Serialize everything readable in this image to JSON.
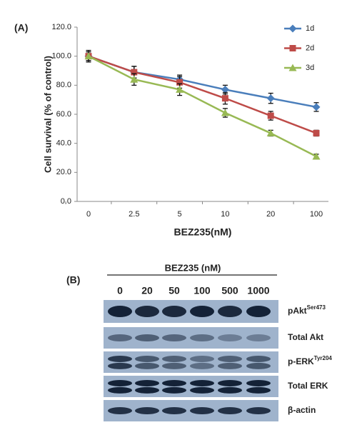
{
  "chart_data": {
    "type": "line",
    "panel_label": "(A)",
    "x_label": "BEZ235(nM)",
    "y_label": "Cell survival (% of control)",
    "categories": [
      "0",
      "2.5",
      "5",
      "10",
      "20",
      "100"
    ],
    "series": [
      {
        "name": "1d",
        "color": "#4a7ebb",
        "marker": "diamond",
        "values": [
          100,
          89,
          84,
          77,
          71,
          65
        ],
        "errors": [
          4,
          4,
          3,
          3,
          3.5,
          3
        ]
      },
      {
        "name": "2d",
        "color": "#be4b48",
        "marker": "square",
        "values": [
          100,
          89,
          82,
          71,
          59,
          47
        ],
        "errors": [
          3,
          4,
          4,
          4,
          3,
          2
        ]
      },
      {
        "name": "3d",
        "color": "#98b954",
        "marker": "triangle",
        "values": [
          100,
          84,
          77,
          61,
          47,
          31
        ],
        "errors": [
          3,
          4,
          4,
          3,
          2,
          1.5
        ]
      }
    ],
    "ylim": [
      0,
      120
    ],
    "yticks": [
      {
        "value": 0,
        "label": "0.0"
      },
      {
        "value": 20,
        "label": "20.0"
      },
      {
        "value": 40,
        "label": "40.0"
      },
      {
        "value": 60,
        "label": "60.0"
      },
      {
        "value": 80,
        "label": "80.0"
      },
      {
        "value": 100,
        "label": "100.0"
      },
      {
        "value": 120,
        "label": "120.0"
      }
    ],
    "grid": false,
    "legend": "upper right"
  },
  "panel_b": {
    "label": "(B)",
    "treatment": "BEZ235 (nM)",
    "lanes": [
      "0",
      "20",
      "50",
      "100",
      "500",
      "1000"
    ],
    "bands": [
      {
        "name": "pAkt",
        "superscript": "Ser473"
      },
      {
        "name": "Total Akt"
      },
      {
        "name": "p-ERK",
        "superscript": "Tyr204"
      },
      {
        "name": "Total ERK"
      },
      {
        "name": "β-actin"
      }
    ]
  }
}
